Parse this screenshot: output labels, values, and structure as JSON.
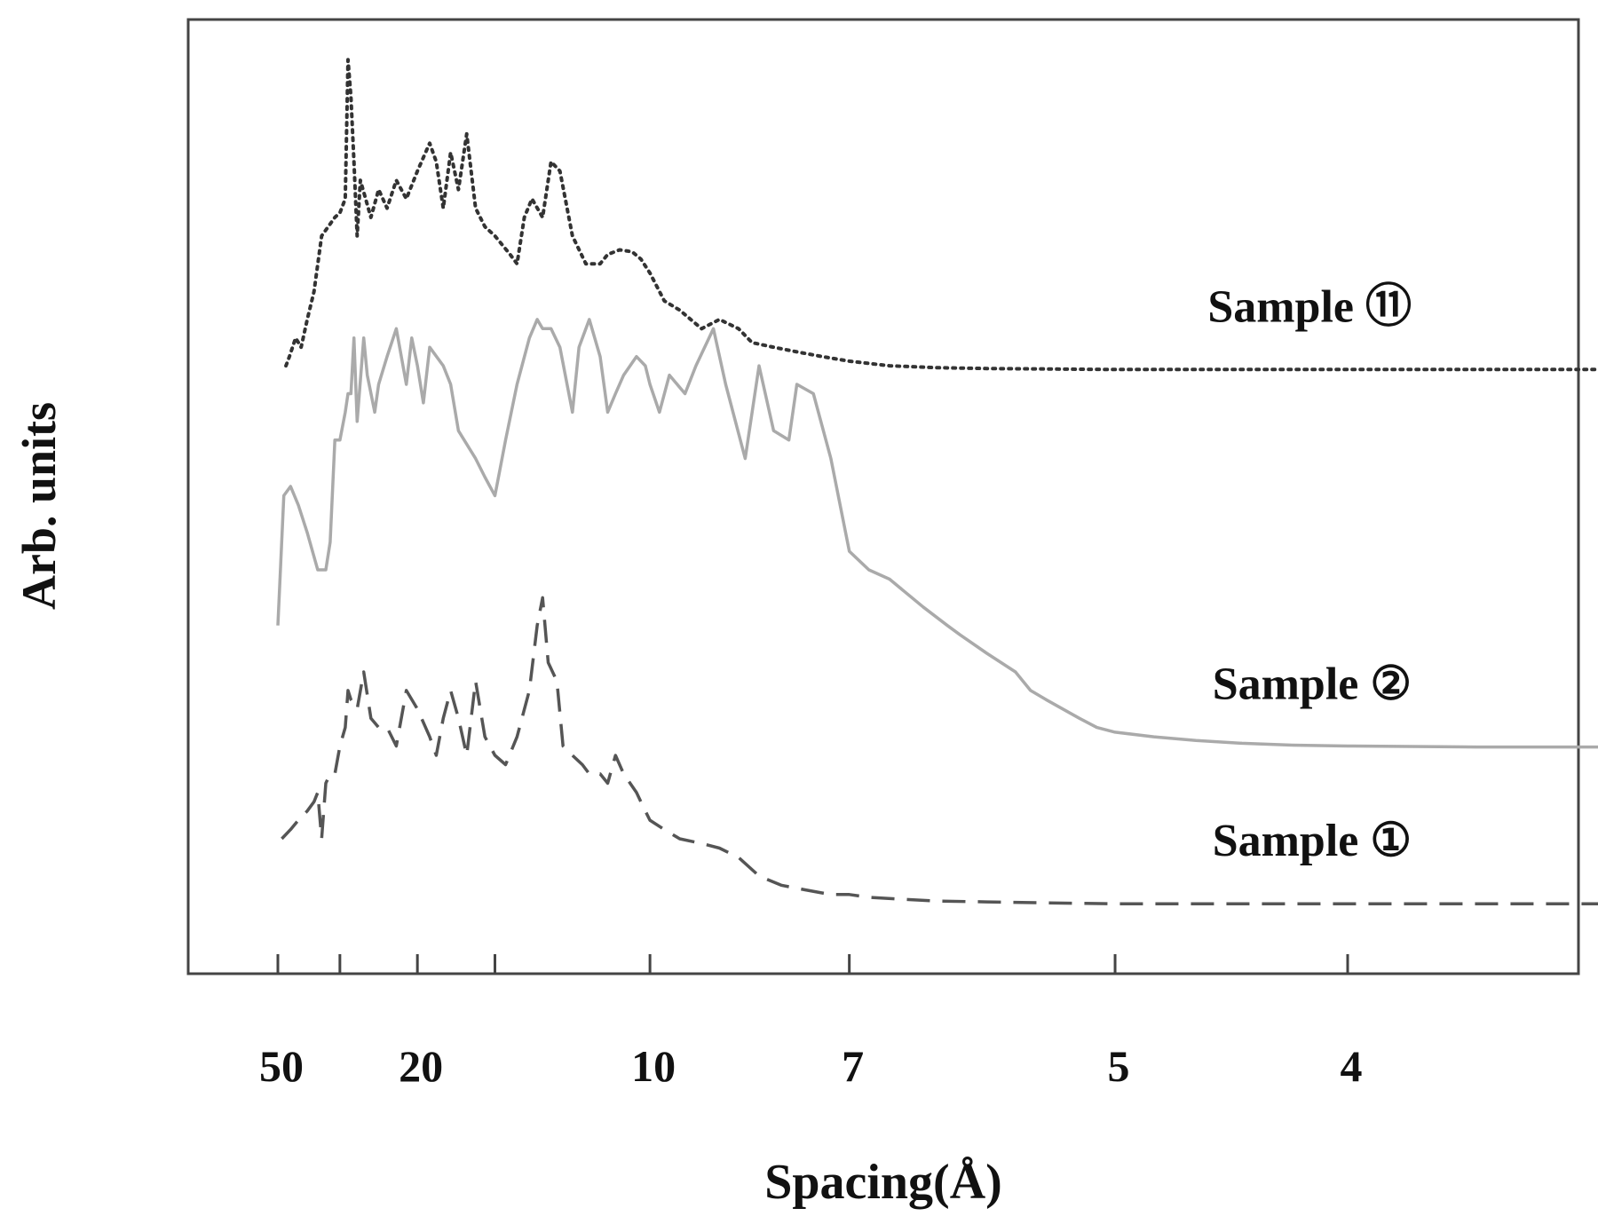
{
  "chart_data": {
    "type": "line",
    "xlabel": "Spacing(Å)",
    "ylabel": "Arb. units",
    "x_axis_scale": "reciprocal",
    "x_ticks": [
      {
        "value": 50,
        "label": "50"
      },
      {
        "value": 30,
        "label": ""
      },
      {
        "value": 20,
        "label": "20"
      },
      {
        "value": 15,
        "label": ""
      },
      {
        "value": 10,
        "label": "10"
      },
      {
        "value": 7,
        "label": "7"
      },
      {
        "value": 5,
        "label": "5"
      },
      {
        "value": 4,
        "label": "4"
      }
    ],
    "xlim": [
      80,
      3.2
    ],
    "ylim": [
      0,
      100
    ],
    "grid": false,
    "legend": "inline labels at right of each curve",
    "series": [
      {
        "name": "Sample ⑪",
        "line_style": "dotted",
        "color": "#333333",
        "label_position": "right",
        "points": [
          [
            46,
            62
          ],
          [
            44.5,
            63
          ],
          [
            42,
            65
          ],
          [
            40,
            64
          ],
          [
            38,
            67
          ],
          [
            36,
            70
          ],
          [
            34,
            76
          ],
          [
            31,
            78
          ],
          [
            30,
            78.5
          ],
          [
            29,
            80
          ],
          [
            28.5,
            95
          ],
          [
            28,
            91
          ],
          [
            27.5,
            84
          ],
          [
            27,
            76
          ],
          [
            26.5,
            82
          ],
          [
            25,
            78
          ],
          [
            24,
            81
          ],
          [
            23,
            79
          ],
          [
            22,
            82
          ],
          [
            21,
            80
          ],
          [
            20,
            83
          ],
          [
            19,
            86
          ],
          [
            18.5,
            84
          ],
          [
            18,
            79
          ],
          [
            17.5,
            85
          ],
          [
            17,
            81
          ],
          [
            16.5,
            87
          ],
          [
            16,
            79
          ],
          [
            15.5,
            77
          ],
          [
            15,
            76
          ],
          [
            14.3,
            74
          ],
          [
            14,
            73
          ],
          [
            13.7,
            78
          ],
          [
            13.4,
            80
          ],
          [
            13,
            78
          ],
          [
            12.7,
            84
          ],
          [
            12.4,
            83
          ],
          [
            12,
            76
          ],
          [
            11.6,
            73
          ],
          [
            11.2,
            73
          ],
          [
            11,
            74
          ],
          [
            10.7,
            74.5
          ],
          [
            10.4,
            74.3
          ],
          [
            10.2,
            73.5
          ],
          [
            10,
            72
          ],
          [
            9.7,
            69
          ],
          [
            9.4,
            68
          ],
          [
            9,
            66
          ],
          [
            8.7,
            67
          ],
          [
            8.4,
            66
          ],
          [
            8.2,
            64.5
          ],
          [
            7.9,
            64
          ],
          [
            7.6,
            63.5
          ],
          [
            7.3,
            63
          ],
          [
            7,
            62.5
          ],
          [
            6.6,
            62
          ],
          [
            6.2,
            61.8
          ],
          [
            5.8,
            61.7
          ],
          [
            5,
            61.6
          ],
          [
            4.2,
            61.6
          ],
          [
            3.2,
            61.6
          ]
        ]
      },
      {
        "name": "Sample ②",
        "line_style": "solid",
        "color": "#aaaaaa",
        "label_position": "right",
        "points": [
          [
            50,
            34
          ],
          [
            47,
            48
          ],
          [
            44,
            49
          ],
          [
            41,
            47
          ],
          [
            38,
            44
          ],
          [
            35,
            40
          ],
          [
            33,
            40
          ],
          [
            32,
            43
          ],
          [
            31,
            54
          ],
          [
            30,
            54
          ],
          [
            29,
            57
          ],
          [
            28.5,
            59
          ],
          [
            28,
            59
          ],
          [
            27.5,
            65
          ],
          [
            27,
            56
          ],
          [
            26,
            65
          ],
          [
            25.5,
            61
          ],
          [
            24.5,
            57
          ],
          [
            24,
            60
          ],
          [
            23,
            63
          ],
          [
            22,
            66
          ],
          [
            21,
            60
          ],
          [
            20.5,
            65
          ],
          [
            20,
            62
          ],
          [
            19.5,
            58
          ],
          [
            19,
            64
          ],
          [
            18,
            62
          ],
          [
            17.5,
            60
          ],
          [
            17,
            55
          ],
          [
            16,
            52
          ],
          [
            15.5,
            50
          ],
          [
            15,
            48
          ],
          [
            14.5,
            54
          ],
          [
            14,
            60
          ],
          [
            13.5,
            65
          ],
          [
            13.2,
            67
          ],
          [
            13,
            66
          ],
          [
            12.7,
            66
          ],
          [
            12.4,
            64
          ],
          [
            12,
            57
          ],
          [
            11.8,
            64
          ],
          [
            11.5,
            67
          ],
          [
            11.2,
            63
          ],
          [
            11,
            57
          ],
          [
            10.8,
            59
          ],
          [
            10.6,
            61
          ],
          [
            10.3,
            63
          ],
          [
            10.1,
            62
          ],
          [
            10,
            60
          ],
          [
            9.8,
            57
          ],
          [
            9.6,
            61
          ],
          [
            9.3,
            59
          ],
          [
            9.1,
            62
          ],
          [
            8.8,
            66
          ],
          [
            8.6,
            60
          ],
          [
            8.3,
            52
          ],
          [
            8.1,
            62
          ],
          [
            7.9,
            55
          ],
          [
            7.7,
            54
          ],
          [
            7.6,
            60
          ],
          [
            7.4,
            59
          ],
          [
            7.2,
            52
          ],
          [
            7,
            42
          ],
          [
            6.8,
            40
          ],
          [
            6.6,
            39
          ],
          [
            6.3,
            36
          ],
          [
            6.1,
            34
          ],
          [
            6,
            33
          ],
          [
            5.8,
            31
          ],
          [
            5.6,
            29
          ],
          [
            5.5,
            27
          ],
          [
            5.4,
            26
          ],
          [
            5.2,
            24
          ],
          [
            5.1,
            23
          ],
          [
            5,
            22.5
          ],
          [
            4.8,
            22
          ],
          [
            4.6,
            21.6
          ],
          [
            4.4,
            21.3
          ],
          [
            4.2,
            21.1
          ],
          [
            4,
            21
          ],
          [
            3.6,
            20.9
          ],
          [
            3.2,
            20.9
          ]
        ]
      },
      {
        "name": "Sample ①",
        "line_style": "dashed",
        "color": "#555555",
        "label_position": "right",
        "points": [
          [
            48,
            11
          ],
          [
            44,
            12
          ],
          [
            41,
            13
          ],
          [
            38,
            14
          ],
          [
            36,
            15
          ],
          [
            35,
            16
          ],
          [
            34,
            11
          ],
          [
            33,
            17
          ],
          [
            32,
            18
          ],
          [
            31,
            18
          ],
          [
            30,
            21
          ],
          [
            29,
            23
          ],
          [
            28.5,
            27
          ],
          [
            28,
            26
          ],
          [
            27,
            25
          ],
          [
            26,
            29
          ],
          [
            25,
            24
          ],
          [
            24,
            23
          ],
          [
            23,
            23
          ],
          [
            22,
            21
          ],
          [
            21,
            27
          ],
          [
            20,
            25
          ],
          [
            19,
            22
          ],
          [
            18.5,
            20
          ],
          [
            18,
            24
          ],
          [
            17.5,
            27
          ],
          [
            17,
            24
          ],
          [
            16.5,
            20
          ],
          [
            16,
            28
          ],
          [
            15.5,
            22
          ],
          [
            15,
            20
          ],
          [
            14.5,
            19
          ],
          [
            14,
            22
          ],
          [
            13.5,
            27
          ],
          [
            13.2,
            34
          ],
          [
            13,
            37
          ],
          [
            12.8,
            30
          ],
          [
            12.5,
            28
          ],
          [
            12.3,
            21
          ],
          [
            12,
            20
          ],
          [
            11.7,
            19
          ],
          [
            11.5,
            18
          ],
          [
            11.2,
            18
          ],
          [
            11,
            17
          ],
          [
            10.8,
            20
          ],
          [
            10.6,
            18
          ],
          [
            10.3,
            16
          ],
          [
            10.1,
            14
          ],
          [
            10,
            13
          ],
          [
            9.7,
            12
          ],
          [
            9.4,
            11
          ],
          [
            9,
            10.5
          ],
          [
            8.7,
            10
          ],
          [
            8.4,
            9
          ],
          [
            8.1,
            7
          ],
          [
            7.8,
            6
          ],
          [
            7.5,
            5.5
          ],
          [
            7.2,
            5
          ],
          [
            7,
            5
          ],
          [
            6.8,
            4.7
          ],
          [
            6.5,
            4.5
          ],
          [
            6.2,
            4.3
          ],
          [
            5.8,
            4.2
          ],
          [
            5.4,
            4.1
          ],
          [
            5,
            4
          ],
          [
            4.4,
            4
          ],
          [
            3.8,
            4
          ],
          [
            3.2,
            4
          ]
        ]
      }
    ]
  }
}
